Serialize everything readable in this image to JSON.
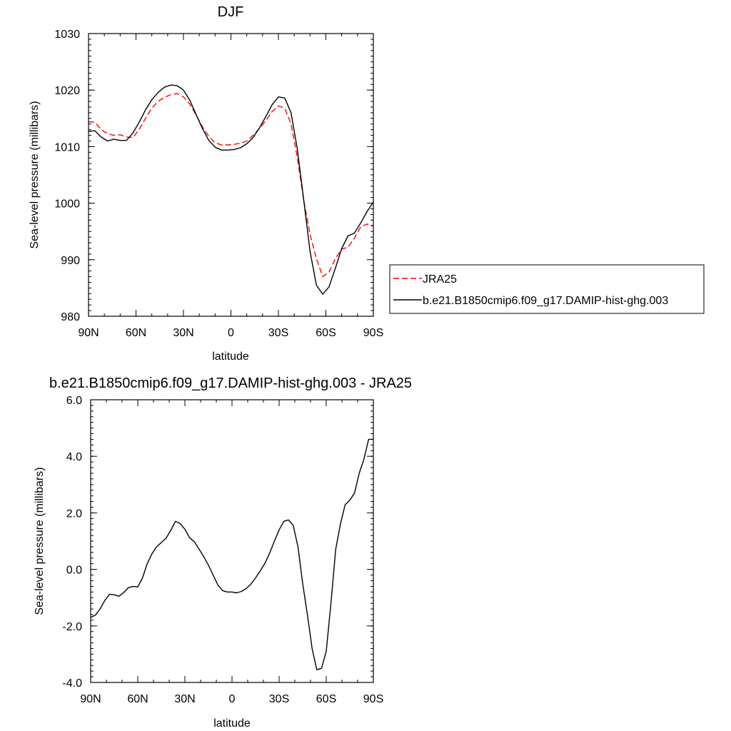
{
  "chart_data": [
    {
      "type": "line",
      "title": "DJF",
      "xlabel": "latitude",
      "ylabel": "Sea-level pressure (millibars)",
      "xlim": [
        90,
        -90
      ],
      "ylim": [
        980,
        1030
      ],
      "xticks": [
        90,
        60,
        30,
        0,
        -30,
        -60,
        -90
      ],
      "xtick_labels": [
        "90N",
        "60N",
        "30N",
        "0",
        "30S",
        "60S",
        "90S"
      ],
      "yticks": [
        980,
        990,
        1000,
        1010,
        1020,
        1030
      ],
      "ytick_labels": [
        "980",
        "990",
        "1000",
        "1010",
        "1020",
        "1030"
      ],
      "legend_position": "right",
      "series": [
        {
          "name": "JRA25",
          "color": "#ff0000",
          "dash": "dashed",
          "x": [
            90,
            86,
            82,
            78,
            74,
            70,
            66,
            62,
            58,
            54,
            50,
            46,
            42,
            38,
            34,
            30,
            26,
            22,
            18,
            14,
            10,
            6,
            2,
            -2,
            -6,
            -10,
            -14,
            -18,
            -22,
            -26,
            -30,
            -34,
            -38,
            -42,
            -46,
            -50,
            -54,
            -58,
            -62,
            -66,
            -70,
            -74,
            -78,
            -82,
            -86,
            -90
          ],
          "y": [
            1014.4,
            1014.3,
            1013.0,
            1012.3,
            1012.0,
            1012.1,
            1011.7,
            1011.6,
            1013.0,
            1015.0,
            1016.8,
            1018.0,
            1018.7,
            1019.2,
            1019.4,
            1018.8,
            1017.5,
            1015.6,
            1013.5,
            1011.8,
            1010.7,
            1010.3,
            1010.3,
            1010.4,
            1010.6,
            1011.0,
            1012.0,
            1013.2,
            1014.6,
            1016.2,
            1017.2,
            1016.8,
            1014.0,
            1008.0,
            1000.5,
            994.5,
            990.2,
            987.0,
            987.8,
            990.2,
            991.9,
            992.2,
            993.8,
            995.8,
            996.3,
            996.0
          ]
        },
        {
          "name": "b.e21.B1850cmip6.f09_g17.DAMIP-hist-ghg.003",
          "color": "#000000",
          "dash": "solid",
          "x": [
            90,
            86,
            82,
            78,
            74,
            70,
            66,
            62,
            58,
            54,
            50,
            46,
            42,
            38,
            34,
            30,
            26,
            22,
            18,
            14,
            10,
            6,
            2,
            -2,
            -6,
            -10,
            -14,
            -18,
            -22,
            -26,
            -30,
            -34,
            -38,
            -42,
            -46,
            -50,
            -54,
            -58,
            -62,
            -66,
            -70,
            -74,
            -78,
            -82,
            -86,
            -90
          ],
          "y": [
            1012.7,
            1012.8,
            1011.7,
            1011.0,
            1011.3,
            1011.1,
            1011.1,
            1012.4,
            1014.3,
            1016.5,
            1018.3,
            1019.6,
            1020.5,
            1020.9,
            1020.8,
            1020.0,
            1018.2,
            1015.7,
            1013.2,
            1011.1,
            1009.9,
            1009.4,
            1009.4,
            1009.5,
            1009.8,
            1010.5,
            1011.6,
            1013.3,
            1015.3,
            1017.4,
            1018.8,
            1018.6,
            1016.0,
            1009.5,
            1000.5,
            991.5,
            985.5,
            983.9,
            985.2,
            988.5,
            992.0,
            994.2,
            994.7,
            996.5,
            998.5,
            1000.2
          ]
        }
      ]
    },
    {
      "type": "line",
      "title": "b.e21.B1850cmip6.f09_g17.DAMIP-hist-ghg.003 - JRA25",
      "xlabel": "latitude",
      "ylabel": "Sea-level pressure (millibars)",
      "xlim": [
        90,
        -90
      ],
      "ylim": [
        -4,
        6
      ],
      "xticks": [
        90,
        60,
        30,
        0,
        -30,
        -60,
        -90
      ],
      "xtick_labels": [
        "90N",
        "60N",
        "30N",
        "0",
        "30S",
        "60S",
        "90S"
      ],
      "yticks": [
        -4,
        -2,
        0,
        2,
        4,
        6
      ],
      "ytick_labels": [
        "-4.0",
        "-2.0",
        "0.0",
        "2.0",
        "4.0",
        "6.0"
      ],
      "series": [
        {
          "color": "#000000",
          "dash": "solid",
          "x": [
            90,
            87,
            84,
            81,
            78,
            75,
            72,
            69,
            66,
            63,
            60,
            57,
            54,
            51,
            48,
            45,
            42,
            39,
            36,
            33,
            30,
            27,
            24,
            21,
            18,
            15,
            12,
            9,
            6,
            3,
            0,
            -3,
            -6,
            -9,
            -12,
            -15,
            -18,
            -21,
            -24,
            -27,
            -30,
            -33,
            -36,
            -39,
            -42,
            -45,
            -48,
            -51,
            -54,
            -57,
            -60,
            -63,
            -66,
            -69,
            -72,
            -75,
            -78,
            -81,
            -84,
            -87,
            -90
          ],
          "y": [
            -1.7,
            -1.62,
            -1.4,
            -1.1,
            -0.88,
            -0.9,
            -0.95,
            -0.82,
            -0.65,
            -0.6,
            -0.62,
            -0.3,
            0.2,
            0.55,
            0.8,
            0.95,
            1.1,
            1.38,
            1.7,
            1.62,
            1.42,
            1.12,
            0.98,
            0.72,
            0.45,
            0.15,
            -0.2,
            -0.55,
            -0.75,
            -0.8,
            -0.8,
            -0.83,
            -0.78,
            -0.68,
            -0.52,
            -0.3,
            -0.05,
            0.22,
            0.58,
            1.0,
            1.4,
            1.7,
            1.75,
            1.55,
            0.8,
            -0.5,
            -1.6,
            -2.8,
            -3.55,
            -3.5,
            -2.9,
            -1.2,
            0.7,
            1.6,
            2.28,
            2.45,
            2.7,
            3.4,
            3.9,
            4.6,
            4.6
          ]
        }
      ]
    }
  ]
}
